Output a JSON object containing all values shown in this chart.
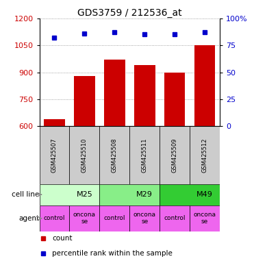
{
  "title": "GDS3759 / 212536_at",
  "samples": [
    "GSM425507",
    "GSM425510",
    "GSM425508",
    "GSM425511",
    "GSM425509",
    "GSM425512"
  ],
  "counts": [
    640,
    880,
    970,
    940,
    900,
    1050
  ],
  "percentile_ranks": [
    82,
    86,
    87,
    85,
    85,
    87
  ],
  "ylim_left": [
    600,
    1200
  ],
  "yticks_left": [
    600,
    750,
    900,
    1050,
    1200
  ],
  "ylim_right": [
    0,
    100
  ],
  "yticks_right": [
    0,
    25,
    50,
    75,
    100
  ],
  "bar_color": "#cc0000",
  "dot_color": "#0000cc",
  "cell_lines": [
    {
      "label": "M25",
      "span": [
        0,
        2
      ],
      "color": "#ccffcc"
    },
    {
      "label": "M29",
      "span": [
        2,
        4
      ],
      "color": "#88ee88"
    },
    {
      "label": "M49",
      "span": [
        4,
        6
      ],
      "color": "#33cc33"
    }
  ],
  "agent_color": "#ee66ee",
  "agent_labels": [
    "control",
    "oncona\nse",
    "control",
    "oncona\nse",
    "control",
    "oncona\nse"
  ],
  "xlabel_color": "#cc0000",
  "ylabel_right_color": "#0000cc",
  "grid_color": "#888888",
  "sample_box_color": "#cccccc",
  "cell_line_label": "cell line",
  "agent_label": "agent",
  "legend_count_label": "count",
  "legend_pct_label": "percentile rank within the sample",
  "bar_width": 0.7
}
